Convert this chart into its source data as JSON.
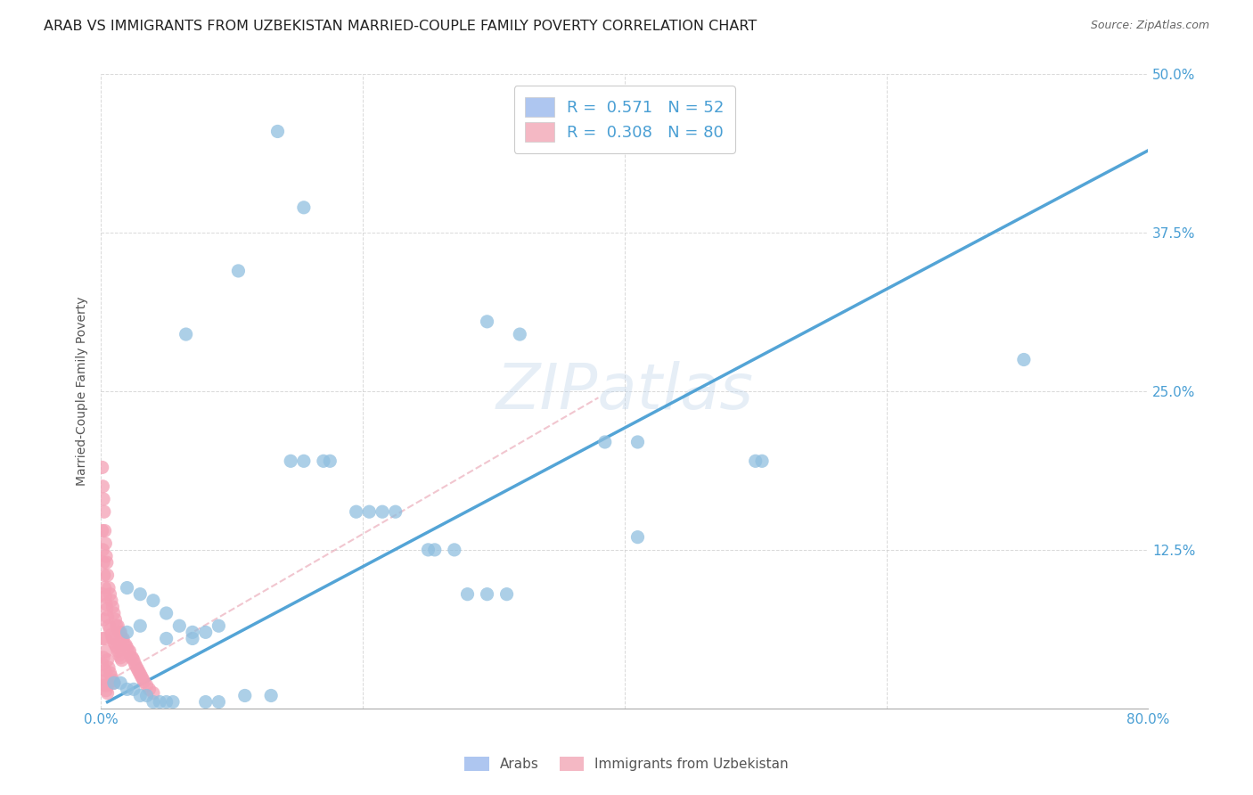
{
  "title": "ARAB VS IMMIGRANTS FROM UZBEKISTAN MARRIED-COUPLE FAMILY POVERTY CORRELATION CHART",
  "source": "Source: ZipAtlas.com",
  "ylabel": "Married-Couple Family Poverty",
  "xlim": [
    0,
    0.8
  ],
  "ylim": [
    0,
    0.5
  ],
  "xtick_positions": [
    0.0,
    0.2,
    0.4,
    0.6,
    0.8
  ],
  "xticklabels": [
    "0.0%",
    "",
    "",
    "",
    "80.0%"
  ],
  "ytick_positions": [
    0.0,
    0.125,
    0.25,
    0.375,
    0.5
  ],
  "yticklabels": [
    "",
    "12.5%",
    "25.0%",
    "37.5%",
    "50.0%"
  ],
  "legend_arab_color": "#aec6f0",
  "legend_uzbek_color": "#f4b8c4",
  "watermark": "ZIPatlas",
  "arab_fill_color": "#90bfdf",
  "uzbek_fill_color": "#f4a0b5",
  "arab_line_color": "#4a9fd4",
  "uzbek_line_color": "#e8a0b0",
  "background_color": "#ffffff",
  "grid_color": "#d0d0d0",
  "tick_color": "#4a9fd4",
  "title_fontsize": 11.5,
  "axis_label_fontsize": 10,
  "arab_line_x0": 0.005,
  "arab_line_y0": 0.005,
  "arab_line_x1": 0.8,
  "arab_line_y1": 0.44,
  "uzbek_line_x0": 0.0,
  "uzbek_line_y0": 0.018,
  "uzbek_line_x1": 0.38,
  "uzbek_line_y1": 0.245,
  "arab_points_x": [
    0.135,
    0.155,
    0.105,
    0.065,
    0.295,
    0.32,
    0.385,
    0.41,
    0.41,
    0.5,
    0.505,
    0.705,
    0.145,
    0.155,
    0.17,
    0.175,
    0.195,
    0.205,
    0.215,
    0.225,
    0.25,
    0.255,
    0.27,
    0.28,
    0.295,
    0.31,
    0.02,
    0.03,
    0.04,
    0.05,
    0.06,
    0.07,
    0.08,
    0.09,
    0.02,
    0.03,
    0.05,
    0.07,
    0.01,
    0.015,
    0.02,
    0.025,
    0.03,
    0.035,
    0.04,
    0.045,
    0.05,
    0.055,
    0.08,
    0.09,
    0.11,
    0.13
  ],
  "arab_points_y": [
    0.455,
    0.395,
    0.345,
    0.295,
    0.305,
    0.295,
    0.21,
    0.21,
    0.135,
    0.195,
    0.195,
    0.275,
    0.195,
    0.195,
    0.195,
    0.195,
    0.155,
    0.155,
    0.155,
    0.155,
    0.125,
    0.125,
    0.125,
    0.09,
    0.09,
    0.09,
    0.095,
    0.09,
    0.085,
    0.075,
    0.065,
    0.06,
    0.06,
    0.065,
    0.06,
    0.065,
    0.055,
    0.055,
    0.02,
    0.02,
    0.015,
    0.015,
    0.01,
    0.01,
    0.005,
    0.005,
    0.005,
    0.005,
    0.005,
    0.005,
    0.01,
    0.01
  ],
  "uzbek_points_x": [
    0.001,
    0.0015,
    0.002,
    0.0025,
    0.003,
    0.0035,
    0.004,
    0.0045,
    0.005,
    0.006,
    0.007,
    0.008,
    0.009,
    0.01,
    0.011,
    0.012,
    0.013,
    0.014,
    0.015,
    0.016,
    0.017,
    0.018,
    0.019,
    0.02,
    0.021,
    0.022,
    0.023,
    0.024,
    0.025,
    0.026,
    0.001,
    0.0015,
    0.002,
    0.0025,
    0.003,
    0.0035,
    0.004,
    0.0045,
    0.005,
    0.006,
    0.007,
    0.008,
    0.009,
    0.01,
    0.011,
    0.012,
    0.013,
    0.014,
    0.015,
    0.016,
    0.001,
    0.002,
    0.003,
    0.004,
    0.005,
    0.006,
    0.007,
    0.008,
    0.009,
    0.01,
    0.001,
    0.002,
    0.003,
    0.004,
    0.005,
    0.001,
    0.002,
    0.003,
    0.004,
    0.005,
    0.027,
    0.028,
    0.029,
    0.03,
    0.031,
    0.032,
    0.033,
    0.035,
    0.037,
    0.04
  ],
  "uzbek_points_y": [
    0.19,
    0.175,
    0.165,
    0.155,
    0.14,
    0.13,
    0.12,
    0.115,
    0.105,
    0.095,
    0.09,
    0.085,
    0.08,
    0.075,
    0.07,
    0.065,
    0.065,
    0.06,
    0.06,
    0.055,
    0.055,
    0.05,
    0.05,
    0.048,
    0.045,
    0.045,
    0.04,
    0.04,
    0.038,
    0.035,
    0.14,
    0.125,
    0.115,
    0.105,
    0.095,
    0.088,
    0.082,
    0.078,
    0.072,
    0.065,
    0.062,
    0.058,
    0.055,
    0.052,
    0.05,
    0.048,
    0.045,
    0.042,
    0.04,
    0.038,
    0.09,
    0.07,
    0.055,
    0.045,
    0.038,
    0.032,
    0.028,
    0.025,
    0.022,
    0.02,
    0.055,
    0.04,
    0.03,
    0.022,
    0.018,
    0.035,
    0.025,
    0.018,
    0.014,
    0.012,
    0.033,
    0.031,
    0.029,
    0.027,
    0.025,
    0.023,
    0.021,
    0.018,
    0.015,
    0.012
  ]
}
